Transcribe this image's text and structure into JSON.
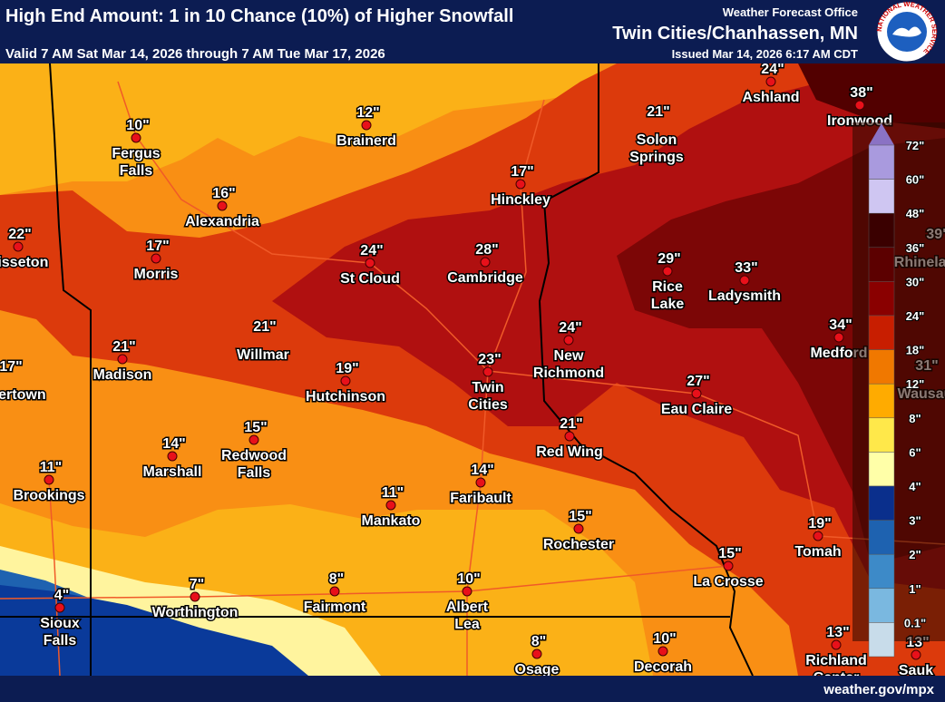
{
  "header": {
    "title": "High End Amount: 1 in 10 Chance (10%) of Higher Snowfall",
    "valid": "Valid 7 AM Sat Mar 14, 2026 through 7 AM Tue Mar 17, 2026",
    "office": "Weather Forecast Office",
    "office_name": "Twin Cities/Chanhassen, MN",
    "issued": "Issued Mar 14, 2026 6:17 AM CDT",
    "logo": "NATIONAL WEATHER SERVICE"
  },
  "cities": [
    {
      "name": [
        "Fergus",
        "Falls"
      ],
      "amount": "10\""
    },
    {
      "name": [
        "Brainerd"
      ],
      "amount": "12\""
    },
    {
      "name": [
        "Alexandria"
      ],
      "amount": "16\""
    },
    {
      "name": [
        "Sisseton"
      ],
      "amount": "22\""
    },
    {
      "name": [
        "Morris"
      ],
      "amount": "17\""
    },
    {
      "name": [
        "Hinckley"
      ],
      "amount": "17\""
    },
    {
      "name": [
        "Solon",
        "Springs"
      ],
      "amount": "21\""
    },
    {
      "name": [
        "Ashland"
      ],
      "amount": "24\""
    },
    {
      "name": [
        "Ironwood"
      ],
      "amount": "38\""
    },
    {
      "name": [
        "Rhinelander"
      ],
      "amount": "39\""
    },
    {
      "name": [
        "St Cloud"
      ],
      "amount": "24\""
    },
    {
      "name": [
        "Cambridge"
      ],
      "amount": "28\""
    },
    {
      "name": [
        "Rice",
        "Lake"
      ],
      "amount": "29\""
    },
    {
      "name": [
        "Ladysmith"
      ],
      "amount": "33\""
    },
    {
      "name": [
        "Medford"
      ],
      "amount": "34\""
    },
    {
      "name": [
        "Wausau"
      ],
      "amount": "31\""
    },
    {
      "name": [
        "Willmar"
      ],
      "amount": "21\""
    },
    {
      "name": [
        "Madison"
      ],
      "amount": "21\""
    },
    {
      "name": [
        "Watertown"
      ],
      "amount": "17\""
    },
    {
      "name": [
        "Hutchinson"
      ],
      "amount": "19\""
    },
    {
      "name": [
        "Twin",
        "Cities"
      ],
      "amount": "23\""
    },
    {
      "name": [
        "New",
        "Richmond"
      ],
      "amount": "24\""
    },
    {
      "name": [
        "Eau Claire"
      ],
      "amount": "27\""
    },
    {
      "name": [
        "Red Wing"
      ],
      "amount": "21\""
    },
    {
      "name": [
        "Redwood",
        "Falls"
      ],
      "amount": "15\""
    },
    {
      "name": [
        "Marshall"
      ],
      "amount": "14\""
    },
    {
      "name": [
        "Brookings"
      ],
      "amount": "11\""
    },
    {
      "name": [
        "Mankato"
      ],
      "amount": "11\""
    },
    {
      "name": [
        "Faribault"
      ],
      "amount": "14\""
    },
    {
      "name": [
        "Rochester"
      ],
      "amount": "15\""
    },
    {
      "name": [
        "La Crosse"
      ],
      "amount": "15\""
    },
    {
      "name": [
        "Tomah"
      ],
      "amount": "19\""
    },
    {
      "name": [
        "Sioux",
        "Falls"
      ],
      "amount": "4\""
    },
    {
      "name": [
        "Worthington"
      ],
      "amount": "7\""
    },
    {
      "name": [
        "Fairmont"
      ],
      "amount": "8\""
    },
    {
      "name": [
        "Albert",
        "Lea"
      ],
      "amount": "10\""
    },
    {
      "name": [
        "Osage"
      ],
      "amount": "8\""
    },
    {
      "name": [
        "Decorah"
      ],
      "amount": "10\""
    },
    {
      "name": [
        "Richland",
        "Center"
      ],
      "amount": "13\""
    },
    {
      "name": [
        "Sauk"
      ],
      "amount": "13\""
    }
  ],
  "legend": {
    "labels": [
      "72\"",
      "60\"",
      "48\"",
      "36\"",
      "30\"",
      "24\"",
      "18\"",
      "12\"",
      "8\"",
      "6\"",
      "4\"",
      "3\"",
      "2\"",
      "1\"",
      "0.1\""
    ],
    "colors": [
      "#a99ade",
      "#cfc6f2",
      "#3a0000",
      "#5c0000",
      "#8a0000",
      "#c81e00",
      "#f07800",
      "#ffab00",
      "#ffe84a",
      "#ffffa8",
      "#0a2f8c",
      "#1e62b0",
      "#3d8ac8",
      "#7ab8e0",
      "#c8dcea"
    ],
    "top_color": "#8a72c4"
  },
  "footer": "weather.gov/mpx"
}
